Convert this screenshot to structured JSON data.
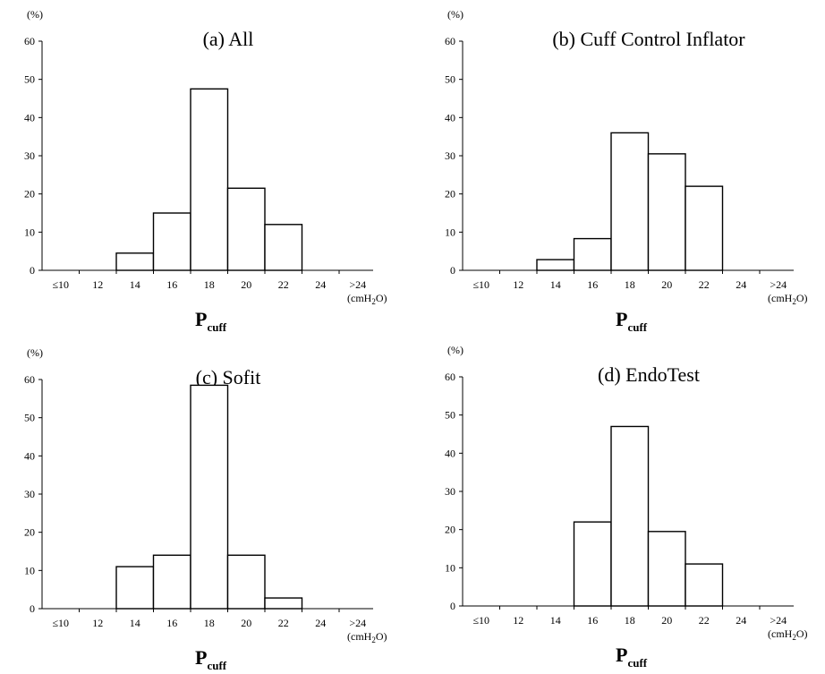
{
  "chart_data": [
    {
      "type": "bar",
      "title": "(a) All",
      "ylabel": "(%)",
      "xlabel": "P",
      "xlabel_sub": "cuff",
      "unit_main": "(cmH",
      "unit_sub": "2",
      "unit_end": "O)",
      "ylim": [
        0,
        60
      ],
      "yticks": [
        "0",
        "10",
        "20",
        "30",
        "40",
        "50",
        "60"
      ],
      "xticks": [
        "≤10",
        "12",
        "14",
        "16",
        "18",
        "20",
        "22",
        "24",
        ">24"
      ],
      "bins": [
        "12-14",
        "14-16",
        "16-18",
        "18-20",
        "20-22"
      ],
      "values": [
        4.5,
        15,
        47.5,
        21.5,
        12
      ]
    },
    {
      "type": "bar",
      "title": "(b) Cuff Control Inflator",
      "ylabel": "(%)",
      "xlabel": "P",
      "xlabel_sub": "cuff",
      "unit_main": "(cmH",
      "unit_sub": "2",
      "unit_end": "O)",
      "ylim": [
        0,
        60
      ],
      "yticks": [
        "0",
        "10",
        "20",
        "30",
        "40",
        "50",
        "60"
      ],
      "xticks": [
        "≤10",
        "12",
        "14",
        "16",
        "18",
        "20",
        "22",
        "24",
        ">24"
      ],
      "bins": [
        "12-14",
        "14-16",
        "16-18",
        "18-20",
        "20-22"
      ],
      "values": [
        2.8,
        8.3,
        36,
        30.5,
        22
      ]
    },
    {
      "type": "bar",
      "title": "(c) Sofit",
      "ylabel": "(%)",
      "xlabel": "P",
      "xlabel_sub": "cuff",
      "unit_main": "(cmH",
      "unit_sub": "2",
      "unit_end": "O)",
      "ylim": [
        0,
        60
      ],
      "yticks": [
        "0",
        "10",
        "20",
        "30",
        "40",
        "50",
        "60"
      ],
      "xticks": [
        "≤10",
        "12",
        "14",
        "16",
        "18",
        "20",
        "22",
        "24",
        ">24"
      ],
      "bins": [
        "12-14",
        "14-16",
        "16-18",
        "18-20",
        "20-22"
      ],
      "values": [
        11,
        14,
        58.5,
        14,
        2.8
      ]
    },
    {
      "type": "bar",
      "title": "(d) EndoTest",
      "ylabel": "(%)",
      "xlabel": "P",
      "xlabel_sub": "cuff",
      "unit_main": "(cmH",
      "unit_sub": "2",
      "unit_end": "O)",
      "ylim": [
        0,
        60
      ],
      "yticks": [
        "0",
        "10",
        "20",
        "30",
        "40",
        "50",
        "60"
      ],
      "xticks": [
        "≤10",
        "12",
        "14",
        "16",
        "18",
        "20",
        "22",
        "24",
        ">24"
      ],
      "bins": [
        "14-16",
        "16-18",
        "18-20",
        "20-22"
      ],
      "values": [
        22,
        47,
        19.5,
        11
      ]
    }
  ]
}
